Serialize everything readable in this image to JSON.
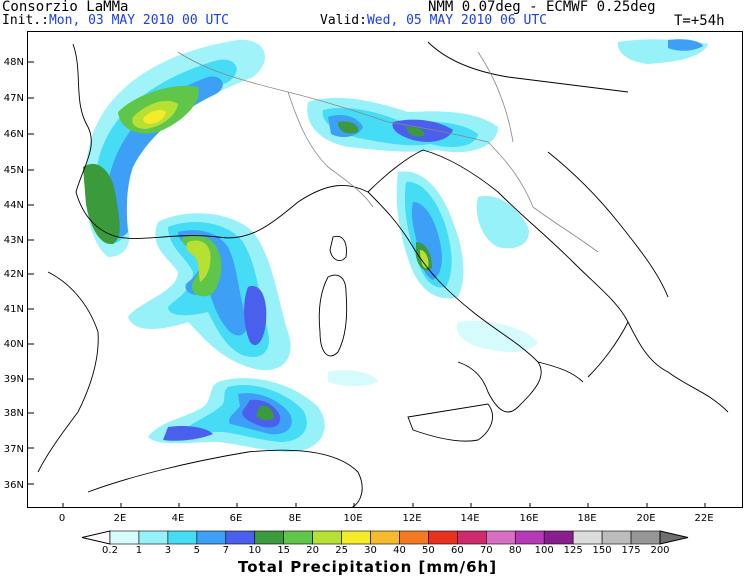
{
  "header": {
    "org": "Consorzio LaMMa",
    "model": "NMM 0.07deg - ECMWF 0.25deg",
    "init_label": "Init.:",
    "init_value": "Mon, 03 MAY 2010   00 UTC",
    "valid_label": "Valid:",
    "valid_value": "Wed, 05 MAY 2010   06 UTC",
    "lead_time": "T=+54h"
  },
  "map": {
    "lat_labels": [
      "48N",
      "47N",
      "46N",
      "45N",
      "44N",
      "43N",
      "42N",
      "41N",
      "40N",
      "39N",
      "38N",
      "37N",
      "36N"
    ],
    "lon_labels": [
      "0",
      "2E",
      "4E",
      "6E",
      "8E",
      "10E",
      "12E",
      "14E",
      "16E",
      "18E",
      "20E",
      "22E"
    ]
  },
  "legend": {
    "title": "Total Precipitation [mm/6h]",
    "levels": [
      "0.2",
      "1",
      "3",
      "5",
      "7",
      "10",
      "15",
      "20",
      "25",
      "30",
      "40",
      "50",
      "60",
      "70",
      "80",
      "100",
      "125",
      "150",
      "175",
      "200"
    ],
    "colors": [
      "#d6fbfd",
      "#96f2f8",
      "#46dcf6",
      "#3d9ff5",
      "#4a60ec",
      "#3a9a3c",
      "#5fc64a",
      "#b6e034",
      "#f4ec2a",
      "#f6bb2c",
      "#f37a22",
      "#e8321e",
      "#cf2a6c",
      "#d86fc4",
      "#b63ab8",
      "#8b1e8e",
      "#dcdcdc",
      "#bcbcbc",
      "#969696",
      "#6e6e6e"
    ]
  }
}
